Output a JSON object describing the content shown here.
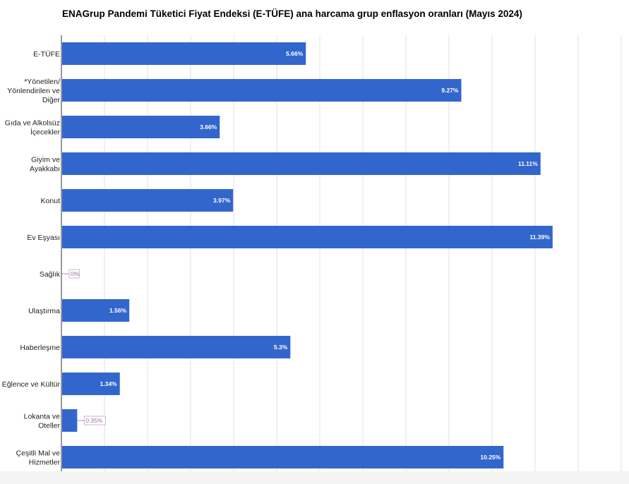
{
  "chart_data": {
    "type": "bar",
    "orientation": "horizontal",
    "title": "ENAGrup Pandemi Tüketici Fiyat Endeksi (E-TÜFE) ana harcama grup enflasyon oranları (Mayıs 2024)",
    "categories": [
      [
        "E-TÜFE"
      ],
      [
        "*Yönetilen/",
        "Yönlendirilen ve",
        "Diğer"
      ],
      [
        "Gıda ve Alkolsüz",
        "İçecekler"
      ],
      [
        "Giyim ve",
        "Ayakkabı"
      ],
      [
        "Konut"
      ],
      [
        "Ev Eşyası"
      ],
      [
        "Sağlık"
      ],
      [
        "Ulaştırma"
      ],
      [
        "Haberleşme"
      ],
      [
        "Eğlence ve Kültür"
      ],
      [
        "Lokanta ve",
        "Oteller"
      ],
      [
        "Çeşitli Mal ve",
        "Hizmetler"
      ]
    ],
    "values": [
      5.66,
      9.27,
      3.66,
      11.11,
      3.97,
      11.39,
      0,
      1.56,
      5.3,
      1.34,
      0.35,
      10.25
    ],
    "data_labels": [
      "5.66%",
      "9.27%",
      "3.66%",
      "11.11%",
      "3.97%",
      "11.39%",
      "0%",
      "1.56%",
      "5.3%",
      "1.34%",
      "0.35%",
      "10.25%"
    ],
    "xlim": [
      0,
      13
    ],
    "grid": true,
    "bar_color": "#3366cc",
    "small_label_color": "#a070a0",
    "legend": "none"
  }
}
